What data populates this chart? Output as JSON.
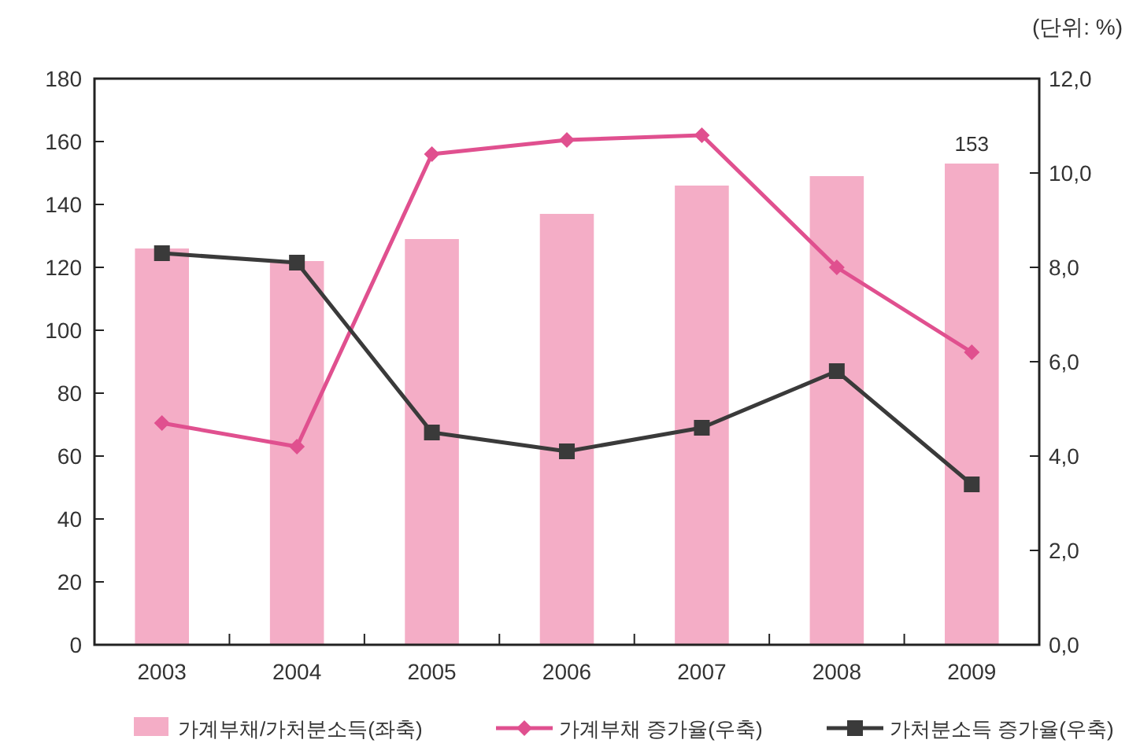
{
  "chart_data": {
    "type": "bar",
    "annotations": [
      "(단위: %)"
    ],
    "categories": [
      "2003",
      "2004",
      "2005",
      "2006",
      "2007",
      "2008",
      "2009"
    ],
    "series": [
      {
        "name": "가계부채/가처분소득(좌축)",
        "color": "#f4adc6",
        "values": [
          126,
          122,
          129,
          137,
          146,
          149,
          153
        ],
        "value_labels": [
          null,
          null,
          null,
          null,
          null,
          null,
          "153"
        ]
      },
      {
        "name": "가계부채 증가율(우축)",
        "type": "line",
        "axis": "y2",
        "color": "#e0508f",
        "marker": "diamond",
        "values": [
          4.7,
          4.2,
          10.4,
          10.7,
          10.8,
          8.0,
          6.2
        ]
      },
      {
        "name": "가처분소득 증가율(우축)",
        "type": "line",
        "axis": "y2",
        "color": "#3a3a3a",
        "marker": "square",
        "values": [
          8.3,
          8.1,
          4.5,
          4.1,
          4.6,
          5.8,
          3.4
        ]
      }
    ],
    "ylim": [
      0,
      180
    ],
    "yticks": [
      0,
      20,
      40,
      60,
      80,
      100,
      120,
      140,
      160,
      180
    ],
    "y2lim": [
      0,
      12
    ],
    "y2ticks": [
      {
        "value": 0,
        "label": "0,0"
      },
      {
        "value": 2,
        "label": "2,0"
      },
      {
        "value": 4,
        "label": "4,0"
      },
      {
        "value": 6,
        "label": "6,0"
      },
      {
        "value": 8,
        "label": "8,0"
      },
      {
        "value": 10,
        "label": "10,0"
      },
      {
        "value": 12,
        "label": "12,0"
      }
    ],
    "grid": false,
    "legend": "bottom"
  }
}
